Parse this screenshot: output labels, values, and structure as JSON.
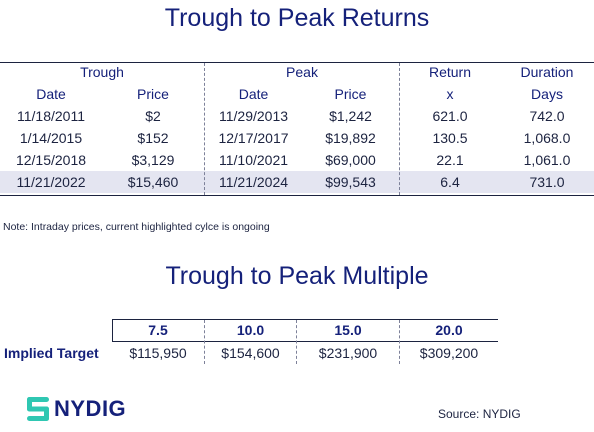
{
  "colors": {
    "navy": "#15217a",
    "highlight": "#e4e5f1",
    "logo_teal": "#2fc7b2"
  },
  "returns_table": {
    "title": "Trough to Peak Returns",
    "group_headers": [
      "Trough",
      "Peak",
      "Return",
      "Duration"
    ],
    "sub_headers": [
      "Date",
      "Price",
      "Date",
      "Price",
      "x",
      "Days"
    ],
    "rows": [
      [
        "11/18/2011",
        "$2",
        "11/29/2013",
        "$1,242",
        "621.0",
        "742.0"
      ],
      [
        "1/14/2015",
        "$152",
        "12/17/2017",
        "$19,892",
        "130.5",
        "1,068.0"
      ],
      [
        "12/15/2018",
        "$3,129",
        "11/10/2021",
        "$69,000",
        "22.1",
        "1,061.0"
      ],
      [
        "11/21/2022",
        "$15,460",
        "11/21/2024",
        "$99,543",
        "6.4",
        "731.0"
      ]
    ],
    "highlighted_row": 3
  },
  "note": "Note: Intraday prices, current highlighted cylce is ongoing",
  "multiple_table": {
    "title": "Trough to Peak Multiple",
    "multiples": [
      "7.5",
      "10.0",
      "15.0",
      "20.0"
    ],
    "row_label": "Implied Target",
    "targets": [
      "$115,950",
      "$154,600",
      "$231,900",
      "$309,200"
    ]
  },
  "logo": {
    "text": "NYDIG",
    "icon": "nydig-logo-icon"
  },
  "source": "Source: NYDIG"
}
